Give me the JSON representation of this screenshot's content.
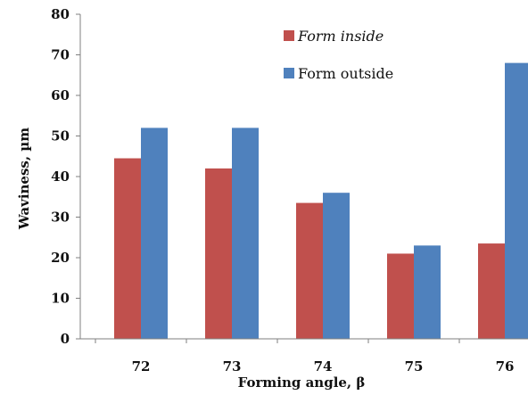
{
  "chart_data": {
    "type": "bar",
    "title": "",
    "xlabel": "Forming angle, β",
    "ylabel": "Waviness, µm",
    "categories": [
      "72",
      "73",
      "74",
      "75",
      "76"
    ],
    "series": [
      {
        "name": "Form inside",
        "color": "#c0504d",
        "values": [
          44.5,
          42,
          33.5,
          21,
          23.5
        ]
      },
      {
        "name": "Form outside",
        "color": "#4f81bd",
        "values": [
          52,
          52,
          36,
          23,
          68
        ]
      }
    ],
    "ylim": [
      0,
      80
    ],
    "yticks": [
      "0",
      "10",
      "20",
      "30",
      "40",
      "50",
      "60",
      "70",
      "80"
    ],
    "grid": false,
    "legend_position": "top-right"
  }
}
